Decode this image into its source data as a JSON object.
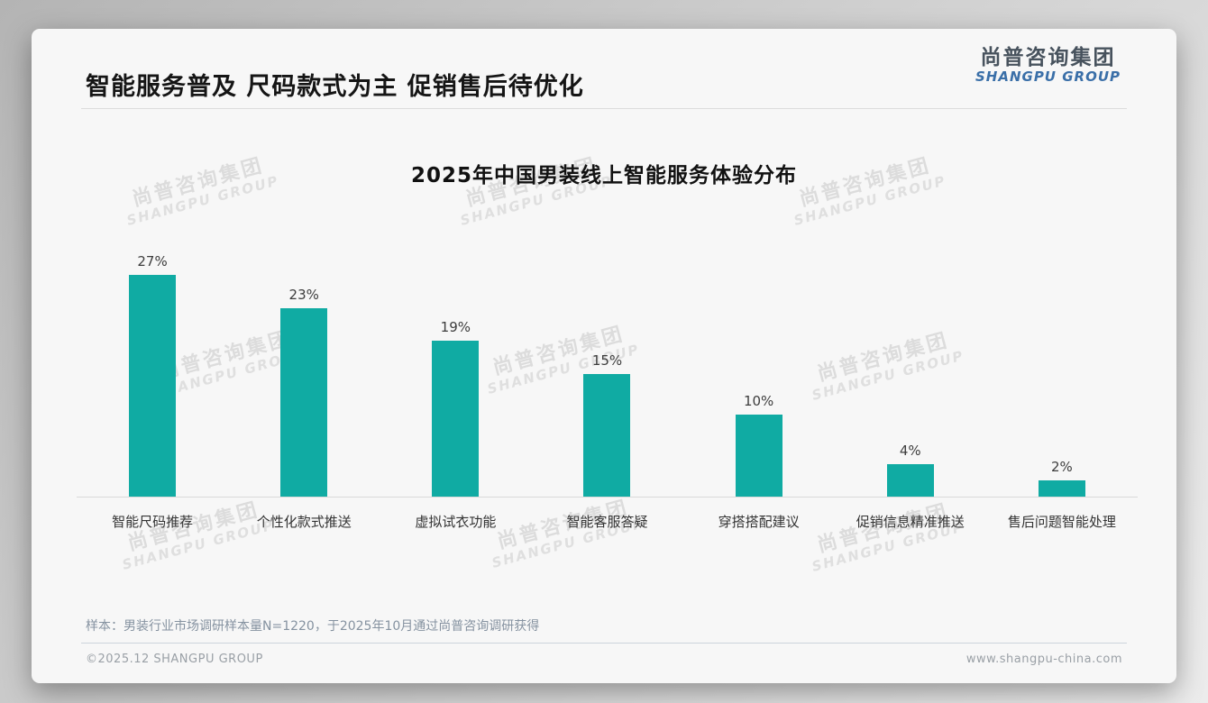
{
  "page": {
    "title": "智能服务普及 尺码款式为主 促销售后待优化",
    "logo": {
      "cn": "尚普咨询集团",
      "en": "SHANGPU GROUP"
    },
    "watermark": {
      "cn": "尚普咨询集团",
      "en": "SHANGPU GROUP"
    },
    "footnote": "样本：男装行业市场调研样本量N=1220，于2025年10月通过尚普咨询调研获得",
    "footer_left": "©2025.12 SHANGPU GROUP",
    "footer_right": "www.shangpu-china.com"
  },
  "colors": {
    "bar": "#10ABA3",
    "logo_blue": "#3A6FA8",
    "logo_dark": "#47525D",
    "card_bg": "#f7f7f7"
  },
  "chart_data": {
    "type": "bar",
    "title": "2025年中国男装线上智能服务体验分布",
    "categories": [
      "智能尺码推荐",
      "个性化款式推送",
      "虚拟试衣功能",
      "智能客服答疑",
      "穿搭搭配建议",
      "促销信息精准推送",
      "售后问题智能处理"
    ],
    "values": [
      27,
      23,
      19,
      15,
      10,
      4,
      2
    ],
    "value_labels": [
      "27%",
      "23%",
      "19%",
      "15%",
      "10%",
      "4%",
      "2%"
    ],
    "xlabel": "",
    "ylabel": "",
    "ylim": [
      0,
      28.5
    ],
    "grid": false,
    "legend": false,
    "axes_hidden": true,
    "value_label_position": "above",
    "bar_color": "#10ABA3"
  }
}
